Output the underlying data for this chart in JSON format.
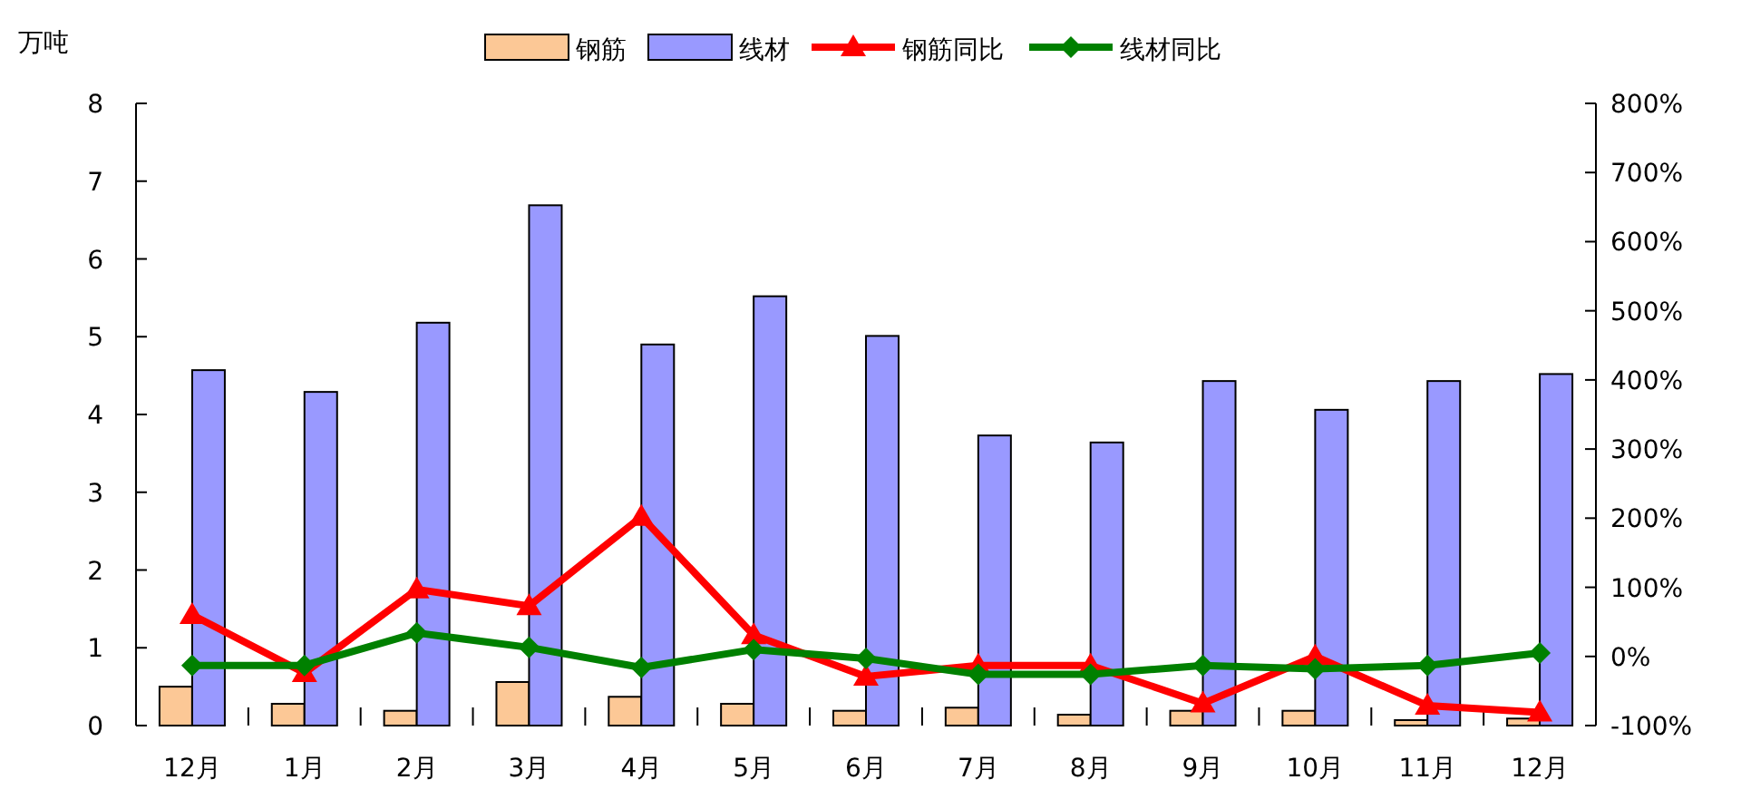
{
  "chart_data": {
    "type": "bar",
    "ylabel": "万吨",
    "categories": [
      "12月",
      "1月",
      "2月",
      "3月",
      "4月",
      "5月",
      "6月",
      "7月",
      "8月",
      "9月",
      "10月",
      "11月",
      "12月"
    ],
    "series": [
      {
        "name": "钢筋",
        "color": "#fcc896",
        "values": [
          0.5,
          0.28,
          0.19,
          0.56,
          0.37,
          0.28,
          0.19,
          0.23,
          0.14,
          0.19,
          0.19,
          0.07,
          0.09
        ]
      },
      {
        "name": "线材",
        "color": "#9999ff",
        "values": [
          4.57,
          4.29,
          5.18,
          6.69,
          4.9,
          5.52,
          5.01,
          3.73,
          3.64,
          4.43,
          4.06,
          4.43,
          4.52
        ]
      },
      {
        "name": "钢筋同比",
        "type": "line",
        "axis": "y2",
        "marker": "triangle",
        "color": "#ff0000",
        "values": [
          60,
          -24,
          97,
          73,
          202,
          31,
          -29,
          -13,
          -13,
          -68,
          0,
          -71,
          -81
        ]
      },
      {
        "name": "线材同比",
        "type": "line",
        "axis": "y2",
        "marker": "diamond",
        "color": "#008000",
        "values": [
          -13,
          -13,
          34,
          13,
          -16,
          10,
          -3,
          -26,
          -26,
          -13,
          -18,
          -13,
          5
        ]
      }
    ],
    "ylim": [
      0,
      8
    ],
    "yticks": [
      0,
      1,
      2,
      3,
      4,
      5,
      6,
      7,
      8
    ],
    "y2lim": [
      -100,
      800
    ],
    "y2ticks": [
      {
        "value": -100,
        "label": "-100%"
      },
      {
        "value": 0,
        "label": "0%"
      },
      {
        "value": 100,
        "label": "100%"
      },
      {
        "value": 200,
        "label": "200%"
      },
      {
        "value": 300,
        "label": "300%"
      },
      {
        "value": 400,
        "label": "400%"
      },
      {
        "value": 500,
        "label": "500%"
      },
      {
        "value": 600,
        "label": "600%"
      },
      {
        "value": 700,
        "label": "700%"
      },
      {
        "value": 800,
        "label": "800%"
      }
    ],
    "legend": "top",
    "grid": false
  }
}
